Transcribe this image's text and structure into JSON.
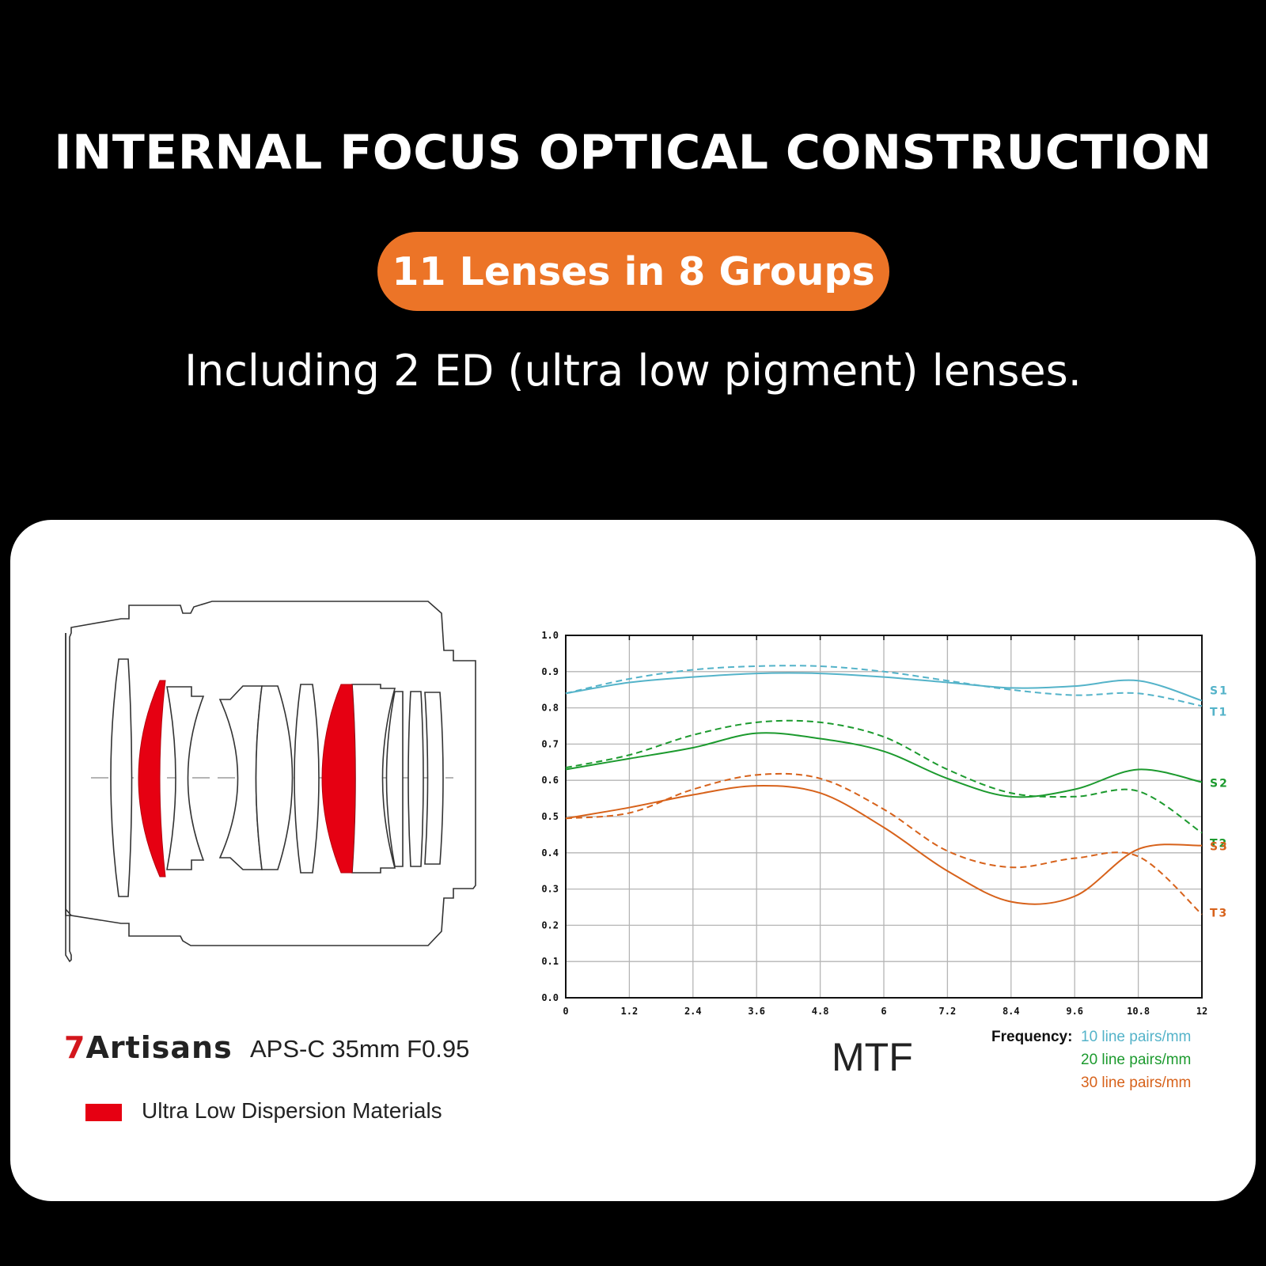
{
  "header": {
    "title": "INTERNAL FOCUS OPTICAL CONSTRUCTION",
    "badge": "11 Lenses in 8 Groups",
    "subtitle": "Including 2 ED (ultra low pigment) lenses."
  },
  "colors": {
    "background": "#000000",
    "badge": "#ec7427",
    "ed_lens": "#e60012",
    "brand_seven": "#d3161c",
    "series_10": "#54b3c9",
    "series_20": "#1c9a2e",
    "series_30": "#d7621b"
  },
  "lens_diagram": {
    "brand_seven": "7",
    "brand_rest": "Artisans",
    "model": "APS-C 35mm F0.95",
    "legend_label": "Ultra Low Dispersion Materials",
    "lens_elements": 11,
    "ed_elements": 2
  },
  "chart_data": {
    "type": "line",
    "title": "MTF",
    "x": [
      0,
      1.2,
      2.4,
      3.6,
      4.8,
      6,
      7.2,
      8.4,
      9.6,
      10.8,
      12
    ],
    "x_ticks": [
      "0",
      "1.2",
      "2.4",
      "3.6",
      "4.8",
      "6",
      "7.2",
      "8.4",
      "9.6",
      "10.8",
      "12"
    ],
    "y_ticks": [
      "0.0",
      "0.1",
      "0.2",
      "0.3",
      "0.4",
      "0.5",
      "0.6",
      "0.7",
      "0.8",
      "0.9",
      "1.0"
    ],
    "xlim": [
      0,
      12
    ],
    "ylim": [
      0,
      1
    ],
    "grid": true,
    "series": [
      {
        "name": "S1",
        "frequency": "10",
        "style": "solid",
        "values": [
          0.84,
          0.87,
          0.885,
          0.895,
          0.895,
          0.885,
          0.87,
          0.855,
          0.86,
          0.875,
          0.82
        ]
      },
      {
        "name": "T1",
        "frequency": "10",
        "style": "dashed",
        "values": [
          0.84,
          0.88,
          0.905,
          0.915,
          0.915,
          0.9,
          0.875,
          0.85,
          0.835,
          0.84,
          0.805
        ]
      },
      {
        "name": "S2",
        "frequency": "20",
        "style": "solid",
        "values": [
          0.63,
          0.66,
          0.69,
          0.73,
          0.715,
          0.68,
          0.605,
          0.555,
          0.575,
          0.63,
          0.595
        ]
      },
      {
        "name": "T2",
        "frequency": "20",
        "style": "dashed",
        "values": [
          0.635,
          0.67,
          0.725,
          0.76,
          0.76,
          0.72,
          0.63,
          0.565,
          0.555,
          0.57,
          0.455
        ]
      },
      {
        "name": "S3",
        "frequency": "30",
        "style": "solid",
        "values": [
          0.495,
          0.525,
          0.56,
          0.585,
          0.565,
          0.47,
          0.35,
          0.265,
          0.28,
          0.41,
          0.42
        ]
      },
      {
        "name": "T3",
        "frequency": "30",
        "style": "dashed",
        "values": [
          0.495,
          0.51,
          0.575,
          0.615,
          0.605,
          0.52,
          0.405,
          0.36,
          0.385,
          0.39,
          0.23
        ]
      }
    ],
    "frequency_label": "Frequency:",
    "frequencies": [
      {
        "label": "10 line pairs/mm",
        "color": "#54b3c9"
      },
      {
        "label": "20 line pairs/mm",
        "color": "#1c9a2e"
      },
      {
        "label": "30 line pairs/mm",
        "color": "#d7621b"
      }
    ]
  }
}
